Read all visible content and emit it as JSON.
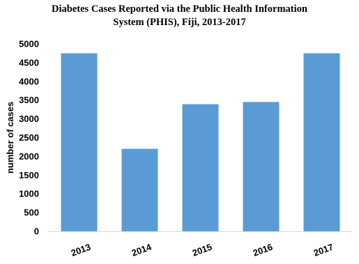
{
  "chart_data": {
    "type": "bar",
    "title_lines": [
      "Diabetes Cases Reported via the Public Health Information",
      "System (PHIS), Fiji, 2013-2017"
    ],
    "categories": [
      "2013",
      "2014",
      "2015",
      "2016",
      "2017"
    ],
    "values": [
      4750,
      2200,
      3390,
      3450,
      4750
    ],
    "xlabel": "",
    "ylabel": "number of cases",
    "ylim": [
      0,
      5000
    ],
    "yticks": [
      0,
      500,
      1000,
      1500,
      2000,
      2500,
      3000,
      3500,
      4000,
      4500,
      5000
    ],
    "bar_color": "#5B9BD5",
    "grid": false,
    "legend": "none"
  }
}
